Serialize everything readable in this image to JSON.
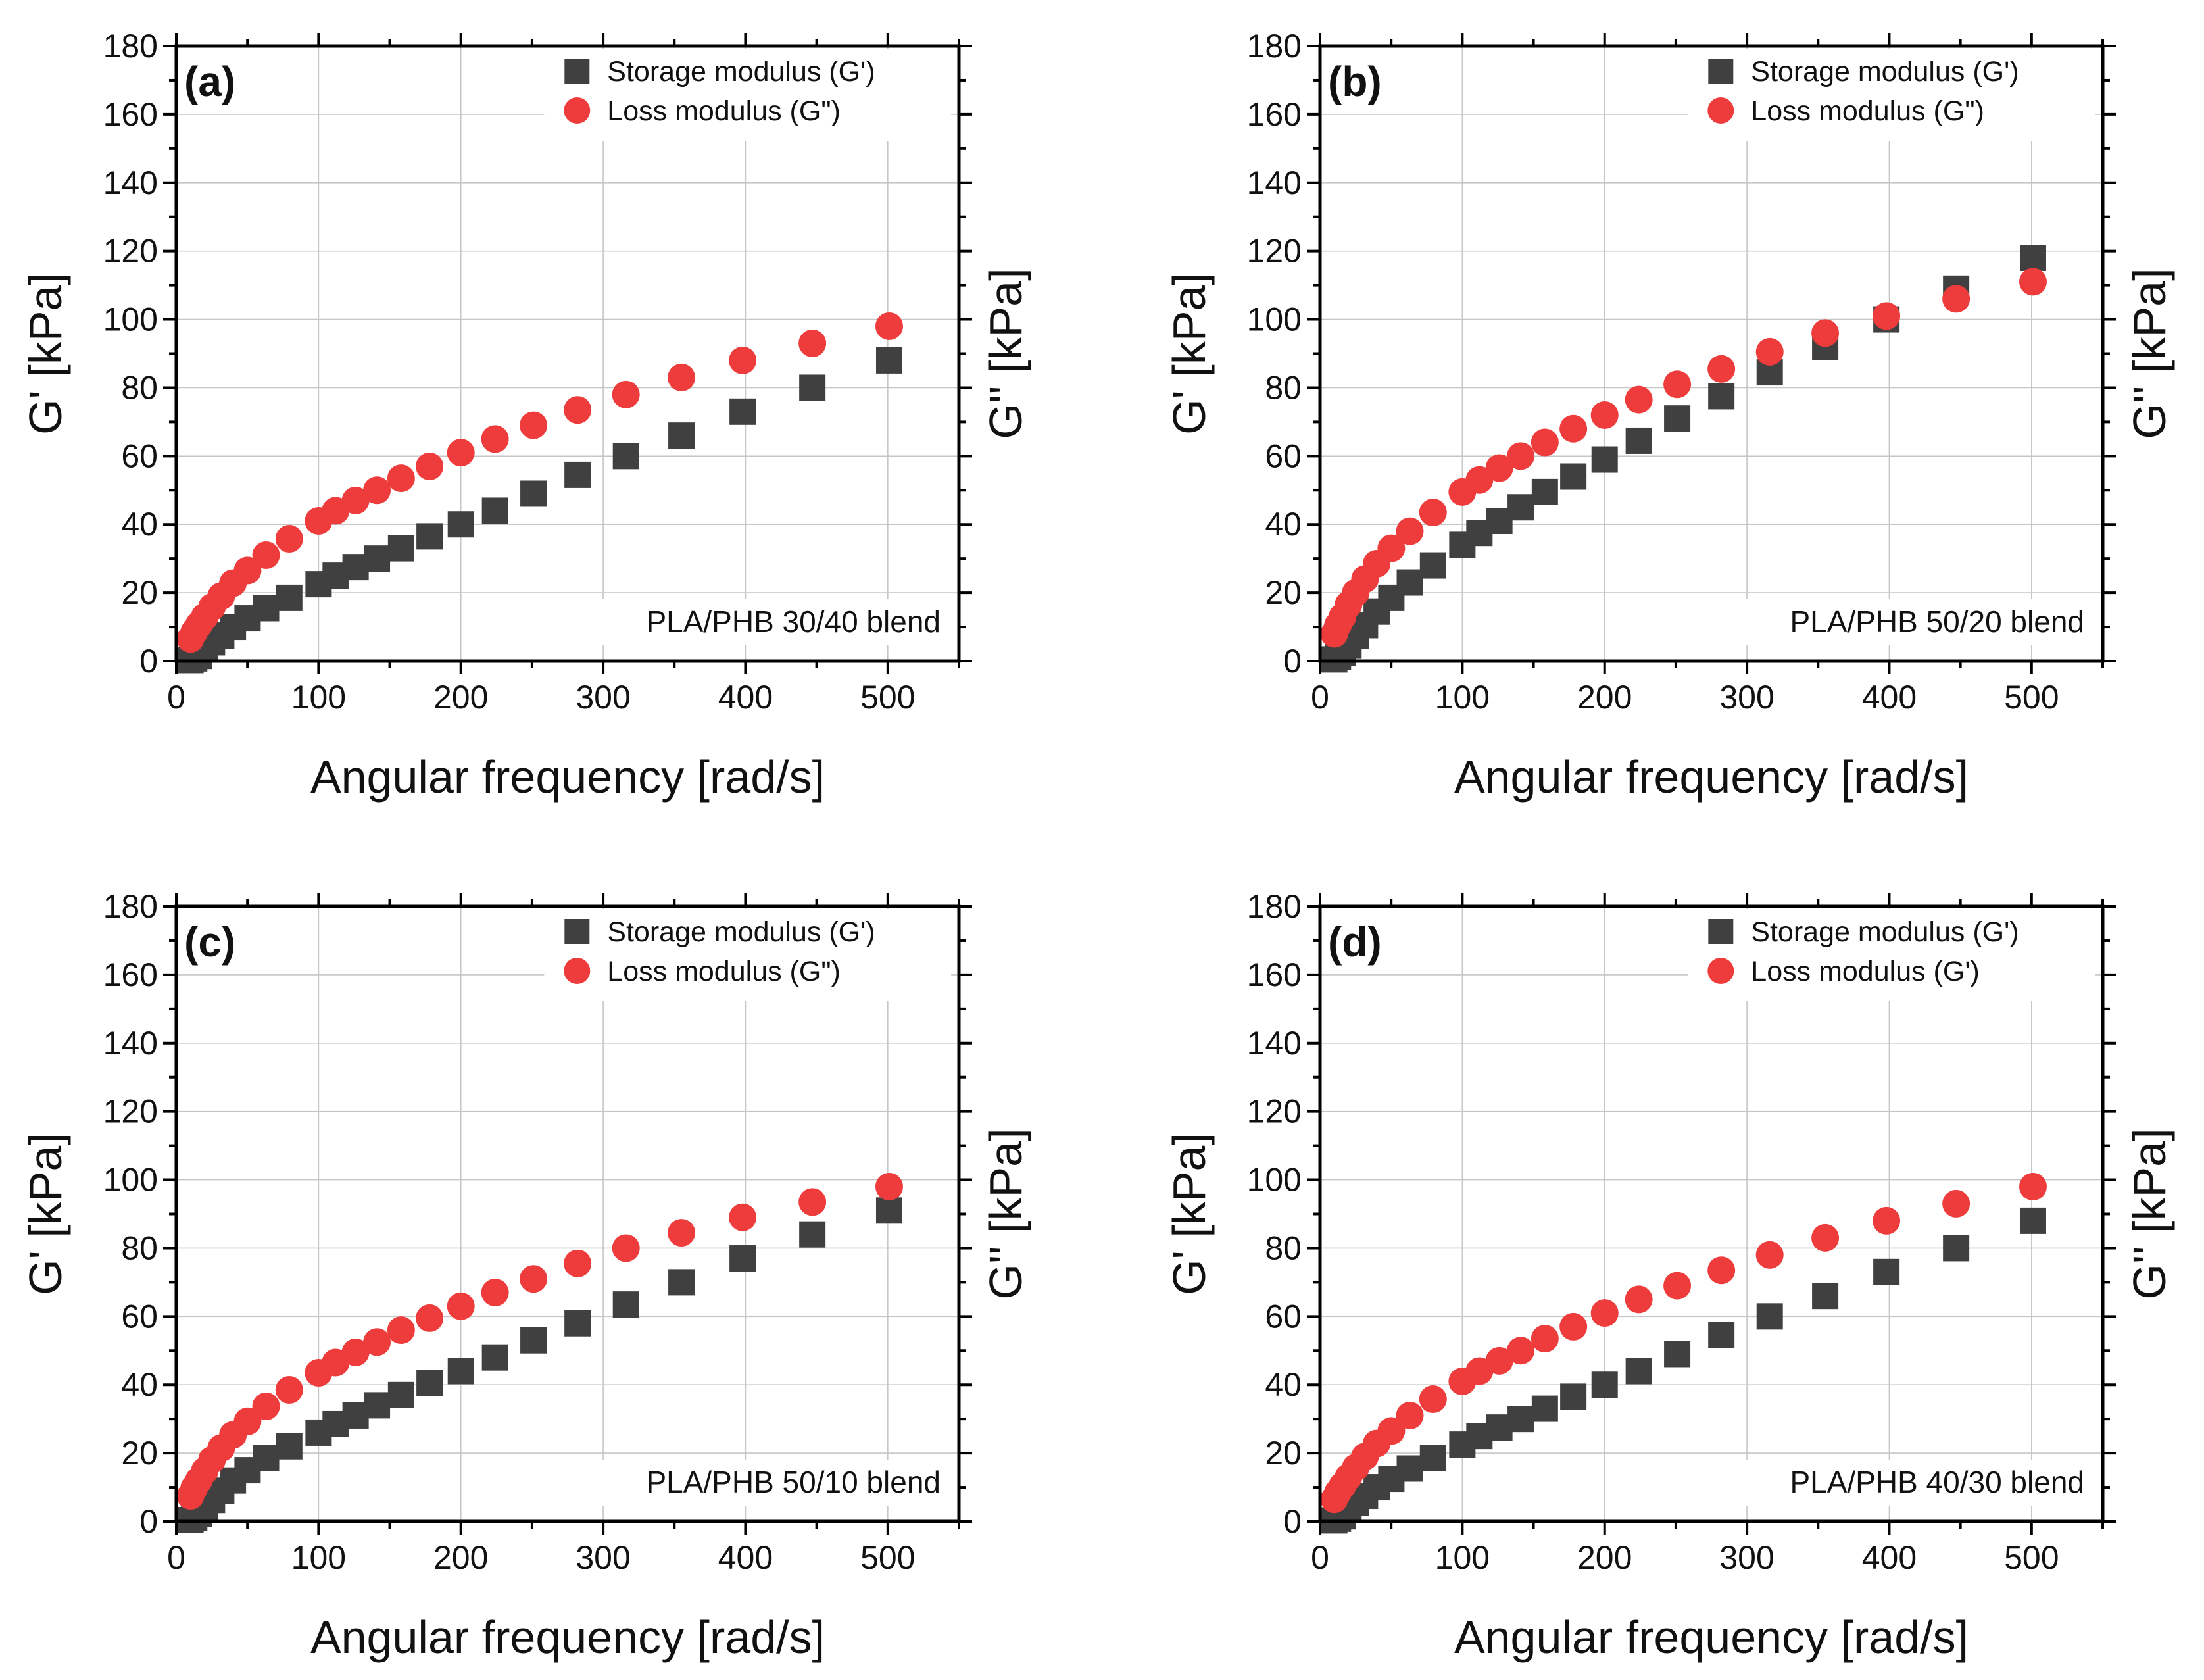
{
  "colors": {
    "storage": "#404040",
    "loss": "#ee3b3b",
    "grid": "#c6c6c6"
  },
  "chart_data": [
    {
      "type": "scatter",
      "panel_label": "(a)",
      "annotation": "PLA/PHB 30/40 blend",
      "xlabel": "Angular frequency [rad/s]",
      "ylabel_left": "G' [kPa]",
      "ylabel_right": "G'' [kPa]",
      "xlim": [
        0,
        550
      ],
      "ylim": [
        0,
        180
      ],
      "xticks": [
        0,
        100,
        200,
        300,
        400,
        500
      ],
      "yticks": [
        0,
        20,
        40,
        60,
        80,
        100,
        120,
        140,
        160,
        180
      ],
      "grid": true,
      "legend_position": "top-right",
      "x": [
        10,
        12.6,
        15.8,
        20,
        25.1,
        31.6,
        39.8,
        50.1,
        63.1,
        79.4,
        100,
        112,
        126,
        141,
        158,
        178,
        200,
        224,
        251,
        282,
        316,
        355,
        398,
        447,
        501
      ],
      "series": [
        {
          "name": "Storage modulus (G')",
          "marker": "square",
          "values": [
            0.3,
            0.8,
            1.5,
            3.5,
            5.5,
            7.5,
            10,
            12.5,
            15.5,
            18.5,
            22.5,
            25,
            27.5,
            30,
            33,
            36.5,
            40,
            44,
            49,
            54.5,
            60,
            66,
            73,
            80,
            88
          ]
        },
        {
          "name": "Loss modulus (G\")",
          "marker": "circle",
          "values": [
            6.5,
            8.5,
            10.5,
            13,
            15.8,
            19,
            22.8,
            26.5,
            31,
            35.8,
            41,
            44,
            47,
            50,
            53.5,
            57,
            61,
            65,
            69,
            73.5,
            78,
            83,
            88,
            93,
            98
          ]
        }
      ]
    },
    {
      "type": "scatter",
      "panel_label": "(b)",
      "annotation": "PLA/PHB 50/20 blend",
      "xlabel": "Angular frequency [rad/s]",
      "ylabel_left": "G' [kPa]",
      "ylabel_right": "G'' [kPa]",
      "xlim": [
        0,
        550
      ],
      "ylim": [
        0,
        180
      ],
      "xticks": [
        0,
        100,
        200,
        300,
        400,
        500
      ],
      "yticks": [
        0,
        20,
        40,
        60,
        80,
        100,
        120,
        140,
        160,
        180
      ],
      "grid": true,
      "legend_position": "top-right",
      "x": [
        10,
        12.6,
        15.8,
        20,
        25.1,
        31.6,
        39.8,
        50.1,
        63.1,
        79.4,
        100,
        112,
        126,
        141,
        158,
        178,
        200,
        224,
        251,
        282,
        316,
        355,
        398,
        447,
        501
      ],
      "series": [
        {
          "name": "Storage modulus (G')",
          "marker": "square",
          "values": [
            0.5,
            1.2,
            2.5,
            4.5,
            7.5,
            10.5,
            14.5,
            18.5,
            23,
            28,
            34,
            37.5,
            41,
            45,
            49.5,
            54,
            59,
            64.5,
            71,
            77.5,
            84.5,
            92,
            100,
            109,
            118
          ]
        },
        {
          "name": "Loss modulus (G\")",
          "marker": "circle",
          "values": [
            8,
            10.5,
            13,
            16.5,
            20,
            24,
            28.5,
            33,
            38,
            43.5,
            49.5,
            53,
            56.5,
            60,
            64,
            68,
            72,
            76.5,
            81,
            85.5,
            90.5,
            96,
            101,
            106,
            111
          ]
        }
      ]
    },
    {
      "type": "scatter",
      "panel_label": "(c)",
      "annotation": "PLA/PHB 50/10 blend",
      "xlabel": "Angular frequency [rad/s]",
      "ylabel_left": "G' [kPa]",
      "ylabel_right": "G'' [kPa]",
      "xlim": [
        0,
        550
      ],
      "ylim": [
        0,
        180
      ],
      "xticks": [
        0,
        100,
        200,
        300,
        400,
        500
      ],
      "yticks": [
        0,
        20,
        40,
        60,
        80,
        100,
        120,
        140,
        160,
        180
      ],
      "grid": true,
      "legend_position": "top-right",
      "x": [
        10,
        12.6,
        15.8,
        20,
        25.1,
        31.6,
        39.8,
        50.1,
        63.1,
        79.4,
        100,
        112,
        126,
        141,
        158,
        178,
        200,
        224,
        251,
        282,
        316,
        355,
        398,
        447,
        501
      ],
      "series": [
        {
          "name": "Storage modulus (G')",
          "marker": "square",
          "values": [
            0.4,
            1,
            2.2,
            4,
            6.3,
            9,
            12,
            15,
            18.5,
            22,
            26,
            28.5,
            31,
            34,
            37,
            40.5,
            44,
            48,
            53,
            58,
            63.5,
            70,
            77,
            84,
            91
          ]
        },
        {
          "name": "Loss modulus (G\")",
          "marker": "circle",
          "values": [
            7.5,
            9.8,
            12,
            14.8,
            18,
            21.5,
            25.3,
            29.3,
            33.7,
            38.5,
            43.5,
            46.5,
            49.5,
            52.5,
            56,
            59.5,
            63,
            67,
            71,
            75.5,
            80,
            84.5,
            89,
            93.5,
            98
          ]
        }
      ]
    },
    {
      "type": "scatter",
      "panel_label": "(d)",
      "annotation": "PLA/PHB 40/30 blend",
      "xlabel": "Angular frequency [rad/s]",
      "ylabel_left": "G' [kPa]",
      "ylabel_right": "G'' [kPa]",
      "xlim": [
        0,
        550
      ],
      "ylim": [
        0,
        180
      ],
      "xticks": [
        0,
        100,
        200,
        300,
        400,
        500
      ],
      "yticks": [
        0,
        20,
        40,
        60,
        80,
        100,
        120,
        140,
        160,
        180
      ],
      "grid": true,
      "legend_position": "top-right",
      "x": [
        10,
        12.6,
        15.8,
        20,
        25.1,
        31.6,
        39.8,
        50.1,
        63.1,
        79.4,
        100,
        112,
        126,
        141,
        158,
        178,
        200,
        224,
        251,
        282,
        316,
        355,
        398,
        447,
        501
      ],
      "series": [
        {
          "name": "Storage modulus (G')",
          "marker": "square",
          "values": [
            0.3,
            0.8,
            1.5,
            3.5,
            5.5,
            7.5,
            10,
            12.5,
            15.5,
            18.5,
            22.5,
            25,
            27.5,
            30,
            33,
            36.5,
            40,
            44,
            49,
            54.5,
            60,
            66,
            73,
            80,
            88
          ]
        },
        {
          "name": "Loss modulus (G')",
          "marker": "circle",
          "values": [
            6.5,
            8.5,
            10.5,
            13,
            15.8,
            19,
            22.8,
            26.5,
            31,
            35.8,
            41,
            44,
            47,
            50,
            53.5,
            57,
            61,
            65,
            69,
            73.5,
            78,
            83,
            88,
            93,
            98
          ]
        }
      ]
    }
  ]
}
